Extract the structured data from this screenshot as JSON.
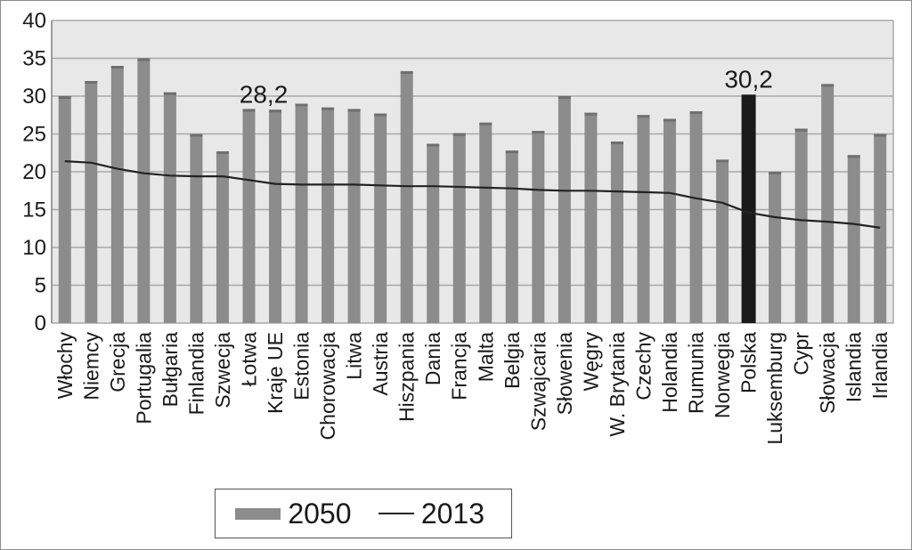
{
  "chart_data": {
    "type": "bar",
    "categories": [
      "Włochy",
      "Niemcy",
      "Grecja",
      "Portugalia",
      "Bułgaria",
      "Finlandia",
      "Szwecja",
      "Łotwa",
      "Kraje UE",
      "Estonia",
      "Chorowacja",
      "Litwa",
      "Austria",
      "Hiszpania",
      "Dania",
      "Francja",
      "Malta",
      "Belgia",
      "Szwajcaria",
      "Słowenia",
      "Węgry",
      "W. Brytania",
      "Czechy",
      "Holandia",
      "Rumunia",
      "Norwegia",
      "Polska",
      "Luksemburg",
      "Cypr",
      "Słowacja",
      "Islandia",
      "Irlandia"
    ],
    "series": [
      {
        "name": "2050",
        "type": "bar",
        "color": "#8c8c8c",
        "values": [
          30,
          32,
          34,
          35,
          30.5,
          25,
          22.7,
          28.3,
          28.2,
          29,
          28.5,
          28.3,
          27.7,
          33.3,
          23.7,
          25.1,
          26.5,
          22.8,
          25.4,
          30,
          27.8,
          24,
          27.5,
          27,
          28,
          21.6,
          30.2,
          20,
          25.7,
          31.6,
          22.2,
          25
        ]
      },
      {
        "name": "2013",
        "type": "line",
        "color": "#222222",
        "values": [
          21.4,
          21.2,
          20.4,
          19.8,
          19.5,
          19.4,
          19.4,
          18.9,
          18.4,
          18.3,
          18.3,
          18.3,
          18.2,
          18.1,
          18.1,
          18,
          17.9,
          17.8,
          17.6,
          17.5,
          17.5,
          17.4,
          17.3,
          17.2,
          16.5,
          15.9,
          14.6,
          14,
          13.6,
          13.4,
          13.1,
          12.6
        ]
      }
    ],
    "highlight": {
      "category": "Polska",
      "color": "#1a1a1a"
    },
    "annotations": [
      {
        "category": "Kraje UE",
        "text": "28,2"
      },
      {
        "category": "Polska",
        "text": "30,2"
      }
    ],
    "ylim": [
      0,
      40
    ],
    "yticks": [
      "0",
      "5",
      "10",
      "15",
      "20",
      "25",
      "30",
      "35",
      "40"
    ],
    "grid": true,
    "legend_position": "bottom",
    "title": "",
    "xlabel": "",
    "ylabel": ""
  }
}
